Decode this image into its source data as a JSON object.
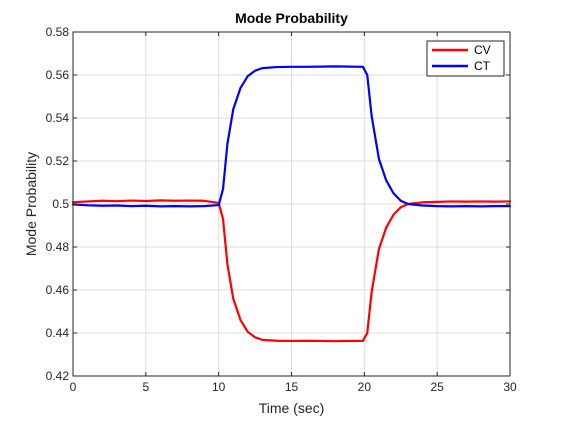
{
  "chart_data": {
    "type": "line",
    "title": "Mode Probability",
    "xlabel": "Time (sec)",
    "ylabel": "Mode Probability",
    "xlim": [
      0,
      30
    ],
    "ylim": [
      0.42,
      0.58
    ],
    "xticks": [
      0,
      5,
      10,
      15,
      20,
      25,
      30
    ],
    "xtick_labels": [
      "0",
      "5",
      "10",
      "15",
      "20",
      "25",
      "30"
    ],
    "yticks": [
      0.42,
      0.44,
      0.46,
      0.48,
      0.5,
      0.52,
      0.54,
      0.56,
      0.58
    ],
    "ytick_labels": [
      "0.42",
      "0.44",
      "0.46",
      "0.48",
      "0.5",
      "0.52",
      "0.54",
      "0.56",
      "0.58"
    ],
    "grid": true,
    "legend_position": "top-right",
    "x": [
      0,
      1,
      2,
      3,
      4,
      5,
      6,
      7,
      8,
      9,
      10,
      10.3,
      10.6,
      11,
      11.5,
      12,
      12.5,
      13,
      14,
      15,
      16,
      17,
      18,
      19,
      19.9,
      20.2,
      20.5,
      21,
      21.5,
      22,
      22.5,
      23,
      24,
      25,
      26,
      27,
      28,
      29,
      30
    ],
    "series": [
      {
        "name": "CV",
        "color": "#ff0000",
        "values": [
          0.5008,
          0.5012,
          0.5015,
          0.5013,
          0.5016,
          0.5014,
          0.5017,
          0.5015,
          0.5016,
          0.5015,
          0.5005,
          0.493,
          0.472,
          0.456,
          0.446,
          0.4405,
          0.438,
          0.4368,
          0.4364,
          0.4363,
          0.4364,
          0.4363,
          0.4362,
          0.4363,
          0.4363,
          0.44,
          0.459,
          0.479,
          0.489,
          0.495,
          0.4985,
          0.5,
          0.5008,
          0.501,
          0.5012,
          0.5011,
          0.5012,
          0.5011,
          0.5012
        ]
      },
      {
        "name": "CT",
        "color": "#0000ff",
        "values": [
          0.4998,
          0.4994,
          0.4992,
          0.4993,
          0.499,
          0.4992,
          0.4989,
          0.499,
          0.4989,
          0.499,
          0.4995,
          0.507,
          0.528,
          0.544,
          0.554,
          0.5595,
          0.562,
          0.5632,
          0.5637,
          0.5638,
          0.5638,
          0.5639,
          0.564,
          0.5639,
          0.5638,
          0.56,
          0.541,
          0.521,
          0.511,
          0.505,
          0.5015,
          0.5,
          0.4993,
          0.499,
          0.4989,
          0.499,
          0.4989,
          0.499,
          0.499
        ]
      }
    ]
  }
}
